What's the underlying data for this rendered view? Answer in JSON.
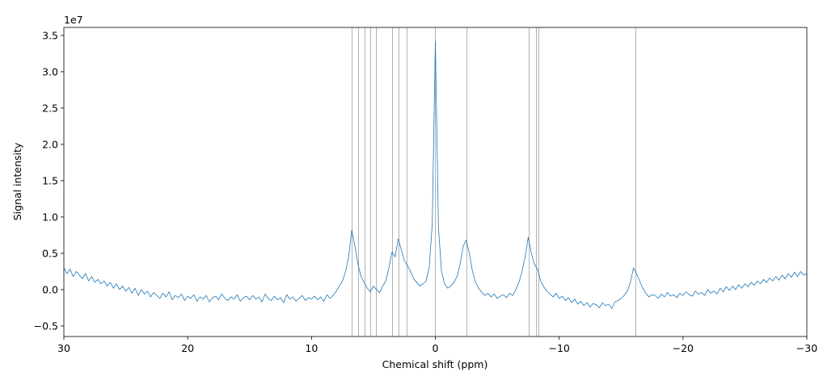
{
  "chart_data": {
    "type": "line",
    "x_label": "Chemical shift (ppm)",
    "y_label": "Signal intensity",
    "y_offset_label": "1e7",
    "color": "#1f77b4",
    "x": [
      30,
      29.75,
      29.5,
      29.25,
      29,
      28.75,
      28.5,
      28.25,
      28,
      27.75,
      27.5,
      27.25,
      27,
      26.75,
      26.5,
      26.25,
      26,
      25.75,
      25.5,
      25.25,
      25,
      24.75,
      24.5,
      24.25,
      24,
      23.75,
      23.5,
      23.25,
      23,
      22.75,
      22.5,
      22.25,
      22,
      21.75,
      21.5,
      21.25,
      21,
      20.75,
      20.5,
      20.25,
      20,
      19.75,
      19.5,
      19.25,
      19,
      18.75,
      18.5,
      18.25,
      18,
      17.75,
      17.5,
      17.25,
      17,
      16.75,
      16.5,
      16.25,
      16,
      15.75,
      15.5,
      15.25,
      15,
      14.75,
      14.5,
      14.25,
      14,
      13.75,
      13.5,
      13.25,
      13,
      12.75,
      12.5,
      12.25,
      12,
      11.75,
      11.5,
      11.25,
      11,
      10.75,
      10.5,
      10.25,
      10,
      9.75,
      9.5,
      9.25,
      9,
      8.75,
      8.5,
      8.25,
      8,
      7.75,
      7.5,
      7.25,
      7,
      6.75,
      6.5,
      6.25,
      6,
      5.75,
      5.5,
      5.25,
      5,
      4.75,
      4.5,
      4.25,
      4,
      3.75,
      3.5,
      3.25,
      3,
      2.75,
      2.5,
      2.25,
      2,
      1.75,
      1.5,
      1.25,
      1,
      0.75,
      0.5,
      0.25,
      0,
      -0.25,
      -0.5,
      -0.75,
      -1,
      -1.25,
      -1.5,
      -1.75,
      -2,
      -2.25,
      -2.5,
      -2.75,
      -3,
      -3.25,
      -3.5,
      -3.75,
      -4,
      -4.25,
      -4.5,
      -4.75,
      -5,
      -5.25,
      -5.5,
      -5.75,
      -6,
      -6.25,
      -6.5,
      -6.75,
      -7,
      -7.25,
      -7.5,
      -7.75,
      -8,
      -8.25,
      -8.5,
      -8.75,
      -9,
      -9.25,
      -9.5,
      -9.75,
      -10,
      -10.25,
      -10.5,
      -10.75,
      -11,
      -11.25,
      -11.5,
      -11.75,
      -12,
      -12.25,
      -12.5,
      -12.75,
      -13,
      -13.25,
      -13.5,
      -13.75,
      -14,
      -14.25,
      -14.5,
      -14.75,
      -15,
      -15.25,
      -15.5,
      -15.75,
      -16,
      -16.25,
      -16.5,
      -16.75,
      -17,
      -17.25,
      -17.5,
      -17.75,
      -18,
      -18.25,
      -18.5,
      -18.75,
      -19,
      -19.25,
      -19.5,
      -19.75,
      -20,
      -20.25,
      -20.5,
      -20.75,
      -21,
      -21.25,
      -21.5,
      -21.75,
      -22,
      -22.25,
      -22.5,
      -22.75,
      -23,
      -23.25,
      -23.5,
      -23.75,
      -24,
      -24.25,
      -24.5,
      -24.75,
      -25,
      -25.25,
      -25.5,
      -25.75,
      -26,
      -26.25,
      -26.5,
      -26.75,
      -27,
      -27.25,
      -27.5,
      -27.75,
      -28,
      -28.25,
      -28.5,
      -28.75,
      -29,
      -29.25,
      -29.5,
      -29.75,
      -30
    ],
    "values": [
      0.3,
      0.22,
      0.28,
      0.18,
      0.25,
      0.2,
      0.15,
      0.22,
      0.12,
      0.18,
      0.1,
      0.14,
      0.08,
      0.12,
      0.05,
      0.1,
      0.02,
      0.08,
      0.0,
      0.05,
      -0.02,
      0.03,
      -0.05,
      0.02,
      -0.08,
      0.0,
      -0.06,
      -0.02,
      -0.1,
      -0.04,
      -0.08,
      -0.12,
      -0.05,
      -0.1,
      -0.03,
      -0.14,
      -0.08,
      -0.11,
      -0.06,
      -0.15,
      -0.09,
      -0.12,
      -0.07,
      -0.16,
      -0.1,
      -0.13,
      -0.08,
      -0.17,
      -0.11,
      -0.09,
      -0.14,
      -0.06,
      -0.12,
      -0.15,
      -0.1,
      -0.13,
      -0.07,
      -0.16,
      -0.11,
      -0.09,
      -0.14,
      -0.08,
      -0.13,
      -0.1,
      -0.17,
      -0.06,
      -0.12,
      -0.15,
      -0.09,
      -0.14,
      -0.11,
      -0.18,
      -0.07,
      -0.13,
      -0.1,
      -0.16,
      -0.12,
      -0.08,
      -0.15,
      -0.11,
      -0.13,
      -0.09,
      -0.14,
      -0.1,
      -0.16,
      -0.07,
      -0.12,
      -0.08,
      -0.02,
      0.05,
      0.12,
      0.25,
      0.45,
      0.82,
      0.6,
      0.35,
      0.18,
      0.1,
      0.02,
      -0.03,
      0.05,
      0.0,
      -0.04,
      0.05,
      0.12,
      0.3,
      0.52,
      0.45,
      0.7,
      0.55,
      0.4,
      0.33,
      0.25,
      0.15,
      0.1,
      0.05,
      0.08,
      0.12,
      0.3,
      0.9,
      3.42,
      0.85,
      0.25,
      0.08,
      0.02,
      0.05,
      0.1,
      0.18,
      0.35,
      0.6,
      0.68,
      0.5,
      0.25,
      0.1,
      0.02,
      -0.04,
      -0.08,
      -0.05,
      -0.1,
      -0.06,
      -0.12,
      -0.09,
      -0.07,
      -0.11,
      -0.05,
      -0.08,
      0.0,
      0.1,
      0.25,
      0.45,
      0.72,
      0.5,
      0.35,
      0.28,
      0.12,
      0.04,
      -0.02,
      -0.06,
      -0.1,
      -0.05,
      -0.12,
      -0.09,
      -0.15,
      -0.11,
      -0.18,
      -0.13,
      -0.2,
      -0.16,
      -0.22,
      -0.18,
      -0.24,
      -0.19,
      -0.21,
      -0.25,
      -0.18,
      -0.22,
      -0.2,
      -0.26,
      -0.17,
      -0.15,
      -0.12,
      -0.08,
      -0.02,
      0.1,
      0.3,
      0.22,
      0.12,
      0.02,
      -0.05,
      -0.1,
      -0.07,
      -0.08,
      -0.12,
      -0.06,
      -0.1,
      -0.04,
      -0.09,
      -0.07,
      -0.11,
      -0.05,
      -0.08,
      -0.03,
      -0.07,
      -0.09,
      -0.02,
      -0.06,
      -0.04,
      -0.08,
      0.0,
      -0.05,
      -0.02,
      -0.06,
      0.02,
      -0.03,
      0.04,
      -0.01,
      0.05,
      0.0,
      0.07,
      0.02,
      0.08,
      0.04,
      0.1,
      0.06,
      0.12,
      0.08,
      0.14,
      0.1,
      0.16,
      0.12,
      0.18,
      0.13,
      0.2,
      0.15,
      0.22,
      0.17,
      0.24,
      0.18,
      0.25,
      0.2,
      0.22
    ],
    "reference_lines": {
      "color": "#a0a0a0",
      "values": [
        6.72,
        6.2,
        5.68,
        5.22,
        4.76,
        3.46,
        2.94,
        2.28,
        0,
        -2.55,
        -7.57,
        -8.16,
        -8.36,
        -16.19
      ]
    },
    "xlim": [
      30,
      -30
    ],
    "xticks": [
      30,
      20,
      10,
      0,
      {
        "value": -10,
        "label": "−10"
      },
      {
        "value": -20,
        "label": "−20"
      },
      {
        "value": -30,
        "label": "−30"
      }
    ],
    "ylim": [
      -0.645,
      3.61
    ],
    "yticks": [
      {
        "value": -0.5,
        "label": "−0.5"
      },
      {
        "value": 0,
        "label": "0.0"
      },
      0.5,
      {
        "value": 1,
        "label": "1.0"
      },
      1.5,
      {
        "value": 2,
        "label": "2.0"
      },
      2.5,
      {
        "value": 3,
        "label": "3.0"
      },
      3.5
    ],
    "grid": false
  }
}
